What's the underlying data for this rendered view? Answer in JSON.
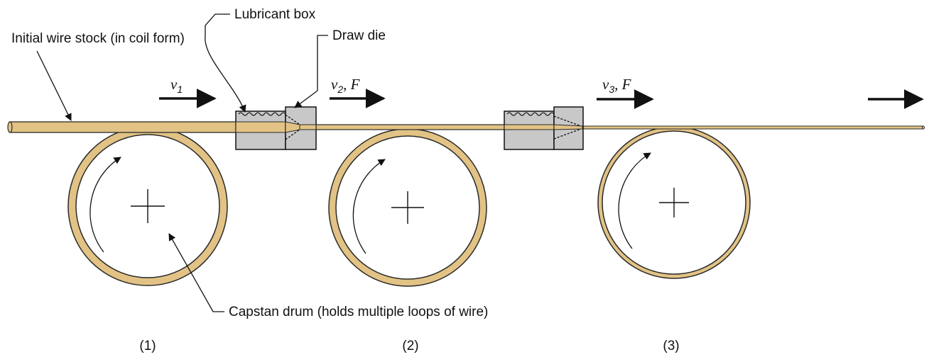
{
  "labels": {
    "initial_wire": "Initial wire stock (in coil form)",
    "lubricant_box": "Lubricant box",
    "draw_die": "Draw die",
    "capstan_drum": "Capstan drum (holds multiple loops of wire)"
  },
  "velocities": {
    "v1": {
      "sym": "v",
      "sub": "1",
      "extra": ""
    },
    "v2": {
      "sym": "v",
      "sub": "2",
      "extra": ", F"
    },
    "v3": {
      "sym": "v",
      "sub": "3",
      "extra": ", F"
    }
  },
  "stations": [
    "(1)",
    "(2)",
    "(3)"
  ],
  "colors": {
    "wire": "#e2c385",
    "wire_edge": "#2a2a2a",
    "die_fill": "#c8c8c8",
    "outline": "#111111"
  }
}
